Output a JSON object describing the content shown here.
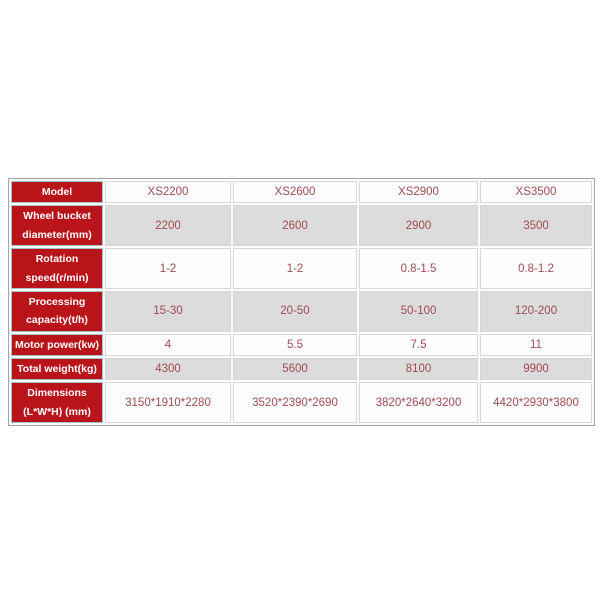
{
  "colors": {
    "label_bg": "#b9141a",
    "label_text": "#ffffff",
    "value_text": "#a14a52",
    "row_alt_bg": "#dcdcdc",
    "row_bg": "#fefefe",
    "label_border": "#9ec6c9",
    "cell_border": "#d7d7d7",
    "outer_border": "#a3a3a3",
    "page_bg": "#ffffff"
  },
  "table": {
    "column_models": [
      "XS2200",
      "XS2600",
      "XS2900",
      "XS3500"
    ],
    "rows": [
      {
        "label": "Model",
        "label_lines": [
          "Model"
        ],
        "values": [
          "XS2200",
          "XS2600",
          "XS2900",
          "XS3500"
        ]
      },
      {
        "label": "Wheel bucket diameter(mm)",
        "label_lines": [
          "Wheel bucket",
          "diameter(mm)"
        ],
        "values": [
          "2200",
          "2600",
          "2900",
          "3500"
        ]
      },
      {
        "label": "Rotation speed(r/min)",
        "label_lines": [
          "Rotation",
          "speed(r/min)"
        ],
        "values": [
          "1-2",
          "1-2",
          "0.8-1.5",
          "0.8-1.2"
        ]
      },
      {
        "label": "Processing capacity(t/h)",
        "label_lines": [
          "Processing",
          "capacity(t/h)"
        ],
        "values": [
          "15-30",
          "20-50",
          "50-100",
          "120-200"
        ]
      },
      {
        "label": "Motor power(kw)",
        "label_lines": [
          "Motor power(kw)"
        ],
        "values": [
          "4",
          "5.5",
          "7.5",
          "11"
        ]
      },
      {
        "label": "Total weight(kg)",
        "label_lines": [
          "Total weight(kg)"
        ],
        "values": [
          "4300",
          "5600",
          "8100",
          "9900"
        ]
      },
      {
        "label": "Dimensions (L*W*H) (mm)",
        "label_lines": [
          "Dimensions",
          "(L*W*H) (mm)"
        ],
        "values": [
          "3150*1910*2280",
          "3520*2390*2690",
          "3820*2640*3200",
          "4420*2930*3800"
        ]
      }
    ]
  }
}
